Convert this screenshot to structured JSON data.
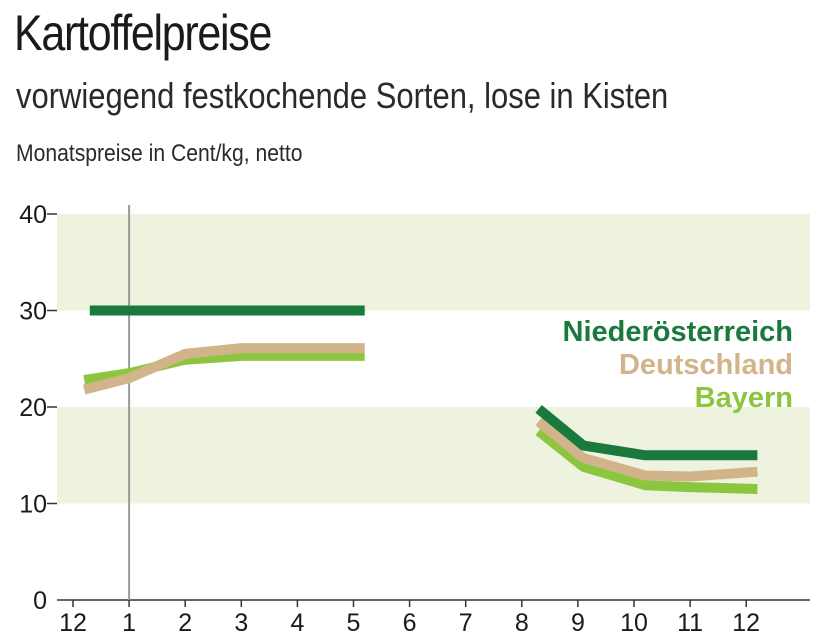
{
  "chart_data": {
    "type": "line",
    "title": "Kartoffelpreise",
    "subtitle": "vorwiegend festkochende Sorten, lose in Kisten",
    "ylabel": "Monatspreise in Cent/kg, netto",
    "xlabel": "",
    "ylim": [
      0,
      40
    ],
    "yticks": [
      0,
      10,
      20,
      30,
      40
    ],
    "x_ticks": [
      {
        "x": 0,
        "label": "12"
      },
      {
        "x": 1,
        "label": "1"
      },
      {
        "x": 2,
        "label": "2"
      },
      {
        "x": 3,
        "label": "3"
      },
      {
        "x": 4,
        "label": "4"
      },
      {
        "x": 5,
        "label": "5"
      },
      {
        "x": 6,
        "label": "6"
      },
      {
        "x": 7,
        "label": "7"
      },
      {
        "x": 8,
        "label": "8"
      },
      {
        "x": 9,
        "label": "9"
      },
      {
        "x": 10,
        "label": "10"
      },
      {
        "x": 11,
        "label": "11"
      },
      {
        "x": 12,
        "label": "12"
      }
    ],
    "vertical_marker_x": 1,
    "grid": "alternating bands",
    "band_color": "#eef3df",
    "legend_position": "right",
    "series": [
      {
        "name": "Niederösterreich",
        "color": "#1a7a3d",
        "segments": [
          [
            {
              "x": 0.3,
              "y": 30.0
            },
            {
              "x": 5.2,
              "y": 30.0
            }
          ],
          [
            {
              "x": 8.3,
              "y": 19.8
            },
            {
              "x": 9.1,
              "y": 16.0
            },
            {
              "x": 10.2,
              "y": 15.0
            },
            {
              "x": 11.0,
              "y": 15.0
            },
            {
              "x": 12.2,
              "y": 15.0
            }
          ]
        ]
      },
      {
        "name": "Deutschland",
        "color": "#d2b48a",
        "segments": [
          [
            {
              "x": 0.2,
              "y": 21.8
            },
            {
              "x": 1.0,
              "y": 23.0
            },
            {
              "x": 2.0,
              "y": 25.5
            },
            {
              "x": 3.0,
              "y": 26.1
            },
            {
              "x": 4.0,
              "y": 26.1
            },
            {
              "x": 5.2,
              "y": 26.1
            }
          ],
          [
            {
              "x": 8.3,
              "y": 18.5
            },
            {
              "x": 9.1,
              "y": 14.7
            },
            {
              "x": 10.2,
              "y": 12.9
            },
            {
              "x": 11.0,
              "y": 12.8
            },
            {
              "x": 12.2,
              "y": 13.3
            }
          ]
        ]
      },
      {
        "name": "Bayern",
        "color": "#8cc63f",
        "segments": [
          [
            {
              "x": 0.2,
              "y": 22.8
            },
            {
              "x": 1.0,
              "y": 23.5
            },
            {
              "x": 2.0,
              "y": 24.9
            },
            {
              "x": 3.0,
              "y": 25.3
            },
            {
              "x": 4.0,
              "y": 25.3
            },
            {
              "x": 5.2,
              "y": 25.3
            }
          ],
          [
            {
              "x": 8.3,
              "y": 17.5
            },
            {
              "x": 9.1,
              "y": 13.8
            },
            {
              "x": 10.2,
              "y": 11.9
            },
            {
              "x": 11.0,
              "y": 11.7
            },
            {
              "x": 12.2,
              "y": 11.5
            }
          ]
        ]
      }
    ]
  }
}
